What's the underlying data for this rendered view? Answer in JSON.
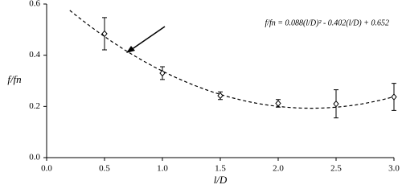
{
  "chart_data": {
    "type": "scatter",
    "x_label": "l/D",
    "y_label": "f/fn",
    "x": [
      0.5,
      1.0,
      1.5,
      2.0,
      2.5,
      3.0
    ],
    "series": [
      {
        "values": [
          0.484,
          0.33,
          0.242,
          0.212,
          0.21,
          0.237
        ],
        "errors": [
          0.063,
          0.025,
          0.015,
          0.015,
          0.055,
          0.053
        ],
        "color": "#000000"
      }
    ],
    "fit": {
      "label": "f/fn = 0.088(l/D)² - 0.402(l/D) + 0.652",
      "coefficients": [
        0.088,
        -0.402,
        0.652
      ],
      "x_start": 0.2
    },
    "xlim": [
      0,
      3
    ],
    "ylim": [
      0,
      0.6
    ],
    "xticks": [
      {
        "value": 0,
        "label": "0.0"
      },
      {
        "value": 0.5,
        "label": "0.5"
      },
      {
        "value": 1,
        "label": "1.0"
      },
      {
        "value": 1.5,
        "label": "1.5"
      },
      {
        "value": 2,
        "label": "2.0"
      },
      {
        "value": 2.5,
        "label": "2.5"
      },
      {
        "value": 3,
        "label": "3.0"
      }
    ],
    "yticks": [
      {
        "value": 0,
        "label": "0.0"
      },
      {
        "value": 0.2,
        "label": "0.2"
      },
      {
        "value": 0.4,
        "label": "0.4"
      },
      {
        "value": 0.6,
        "label": "0.6"
      }
    ],
    "grid": false
  }
}
